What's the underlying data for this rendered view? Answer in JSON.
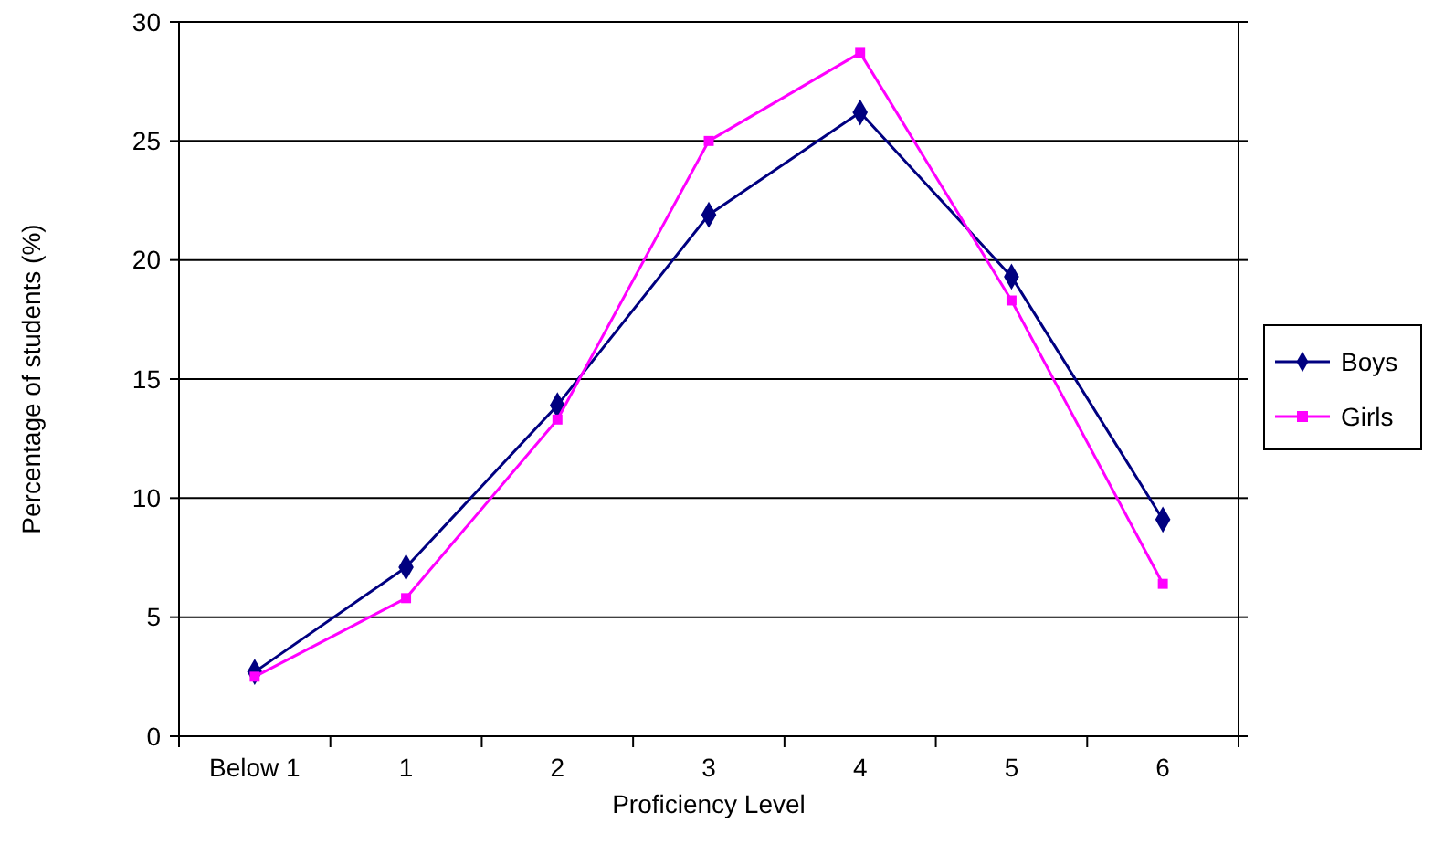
{
  "chart_data": {
    "type": "line",
    "xlabel": "Proficiency Level",
    "ylabel": "Percentage of students (%)",
    "categories": [
      "Below 1",
      "1",
      "2",
      "3",
      "4",
      "5",
      "6"
    ],
    "series": [
      {
        "name": "Boys",
        "color": "#000080",
        "marker": "diamond",
        "values": [
          2.7,
          7.1,
          13.9,
          21.9,
          26.2,
          19.3,
          9.1
        ]
      },
      {
        "name": "Girls",
        "color": "#ff00ff",
        "marker": "square",
        "values": [
          2.5,
          5.8,
          13.3,
          25.0,
          28.7,
          18.3,
          6.4
        ]
      }
    ],
    "ylim": [
      0,
      30
    ],
    "yticks": [
      0,
      5,
      10,
      15,
      20,
      25,
      30
    ],
    "grid": "y",
    "legend": "right",
    "line_style": "solid"
  }
}
